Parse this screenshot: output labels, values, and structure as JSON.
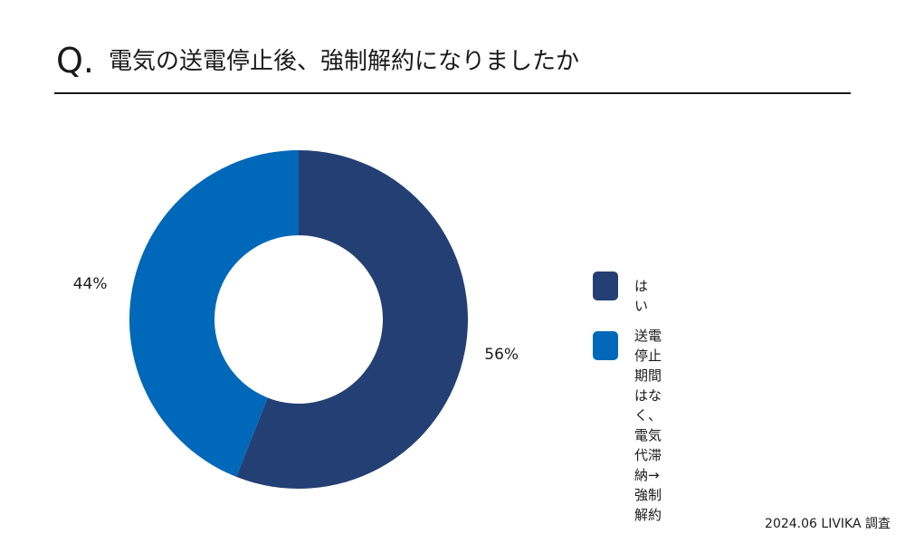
{
  "title": {
    "prefix": "Q.",
    "question": "電気の送電停止後、強制解約になりましたか"
  },
  "chart_data": {
    "type": "pie",
    "donut": true,
    "categories": [
      "はい",
      "送電停止期間はなく、\n電気代滞納→強制解約"
    ],
    "values": [
      56,
      44
    ],
    "value_labels": [
      "56%",
      "44%"
    ],
    "colors": [
      "#243f73",
      "#0068b8"
    ],
    "legend_position": "right"
  },
  "footer": "2024.06 LIVIKA 調査"
}
